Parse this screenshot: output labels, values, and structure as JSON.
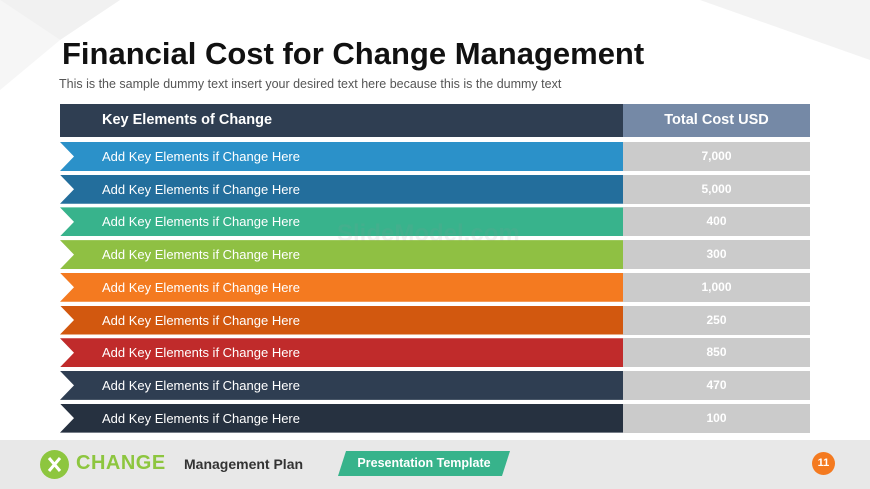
{
  "slide": {
    "title": "Financial Cost for Change Management",
    "subtitle": "This is the sample dummy  text insert your desired text here because this is the dummy  text"
  },
  "table": {
    "header_left": "Key Elements of Change",
    "header_right": "Total Cost USD",
    "rows": [
      {
        "label": "Add  Key Elements  if Change  Here",
        "value": "7,000",
        "color": "#2b91c9"
      },
      {
        "label": "Add  Key Elements  if Change  Here",
        "value": "5,000",
        "color": "#236e9c"
      },
      {
        "label": "Add  Key Elements  if Change  Here",
        "value": "400",
        "color": "#38b38c"
      },
      {
        "label": "Add  Key Elements  if Change  Here",
        "value": "300",
        "color": "#8fc043"
      },
      {
        "label": "Add  Key Elements  if Change  Here",
        "value": "1,000",
        "color": "#f47a20"
      },
      {
        "label": "Add  Key Elements  if Change  Here",
        "value": "250",
        "color": "#d2580f"
      },
      {
        "label": "Add  Key Elements  if Change  Here",
        "value": "850",
        "color": "#c02b2b"
      },
      {
        "label": "Add  Key Elements  if Change  Here",
        "value": "470",
        "color": "#2f3e52"
      },
      {
        "label": "Add  Key Elements  if Change  Here",
        "value": "100",
        "color": "#263140"
      }
    ]
  },
  "watermark": "SlideModel.com",
  "footer": {
    "logo_text": "CHANGE",
    "mgmt_text": "Management Plan",
    "badge": "Presentation Template",
    "page_number": "11"
  }
}
